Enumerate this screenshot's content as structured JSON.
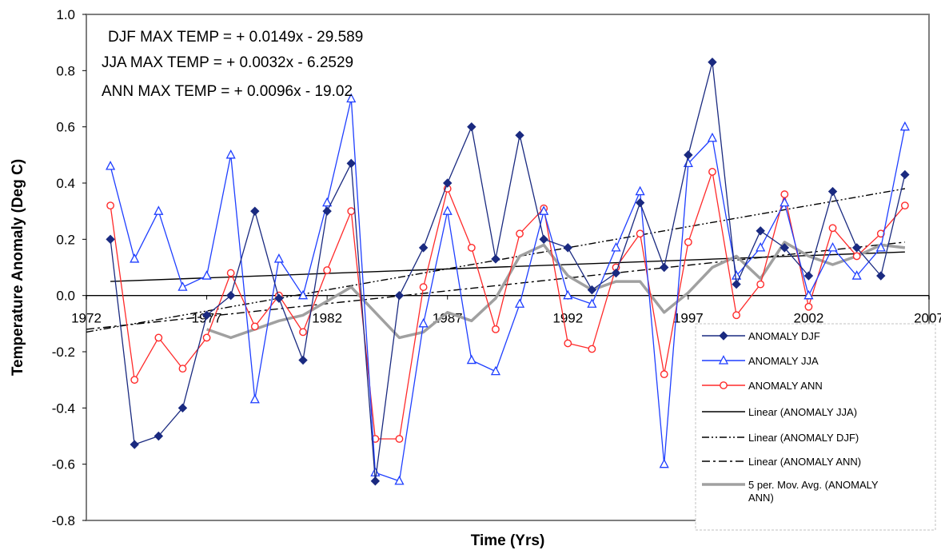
{
  "chart_data": {
    "type": "line",
    "title": "",
    "xlabel": "Time (Yrs)",
    "ylabel": "Temperature Anomaly (Deg C)",
    "xlim": [
      1972,
      2007
    ],
    "ylim": [
      -0.8,
      1.0
    ],
    "xticks": [
      "1972",
      "1977",
      "1982",
      "1987",
      "1992",
      "1997",
      "2002",
      "2007"
    ],
    "yticks": [
      "-0.8",
      "-0.6",
      "-0.4",
      "-0.2",
      "0.0",
      "0.2",
      "0.4",
      "0.6",
      "0.8",
      "1.0"
    ],
    "grid": false,
    "legend_position": "bottom-right",
    "equations": [
      "DJF MAX TEMP = + 0.0149x - 29.589",
      "JJA MAX TEMP =  + 0.0032x - 6.2529",
      "ANN MAX TEMP = + 0.0096x - 19.02"
    ],
    "x": [
      1973,
      1974,
      1975,
      1976,
      1977,
      1978,
      1979,
      1980,
      1981,
      1982,
      1983,
      1984,
      1985,
      1986,
      1987,
      1988,
      1989,
      1990,
      1991,
      1992,
      1993,
      1994,
      1995,
      1996,
      1997,
      1998,
      1999,
      2000,
      2001,
      2002,
      2003,
      2004,
      2005,
      2006
    ],
    "series": [
      {
        "name": "ANOMALY DJF",
        "color": "#1a2a80",
        "marker": "diamond",
        "values": [
          0.2,
          -0.53,
          -0.5,
          -0.4,
          -0.07,
          0.0,
          0.3,
          -0.01,
          -0.23,
          0.3,
          0.47,
          -0.66,
          0.0,
          0.17,
          0.4,
          0.6,
          0.13,
          0.57,
          0.2,
          0.17,
          0.02,
          0.08,
          0.33,
          0.1,
          0.5,
          0.83,
          0.04,
          0.23,
          0.17,
          0.07,
          0.37,
          0.17,
          0.07,
          0.43
        ]
      },
      {
        "name": "ANOMALY JJA",
        "color": "#1f3fff",
        "marker": "triangle",
        "values": [
          0.46,
          0.13,
          0.3,
          0.03,
          0.07,
          0.5,
          -0.37,
          0.13,
          0.0,
          0.33,
          0.7,
          -0.63,
          -0.66,
          -0.1,
          0.3,
          -0.23,
          -0.27,
          -0.03,
          0.3,
          0.0,
          -0.03,
          0.17,
          0.37,
          -0.6,
          0.47,
          0.56,
          0.07,
          0.17,
          0.33,
          0.0,
          0.17,
          0.07,
          0.17,
          0.6
        ]
      },
      {
        "name": "ANOMALY ANN",
        "color": "#ff2a2a",
        "marker": "circle",
        "values": [
          0.32,
          -0.3,
          -0.15,
          -0.26,
          -0.15,
          0.08,
          -0.11,
          0.0,
          -0.13,
          0.09,
          0.3,
          -0.51,
          -0.51,
          0.03,
          0.38,
          0.17,
          -0.12,
          0.22,
          0.31,
          -0.17,
          -0.19,
          0.1,
          0.22,
          -0.28,
          0.19,
          0.44,
          -0.07,
          0.04,
          0.36,
          -0.04,
          0.24,
          0.14,
          0.22,
          0.32
        ]
      },
      {
        "name": "Linear (ANOMALY JJA)",
        "color": "#000000",
        "style": "solid",
        "x": [
          1973,
          2006
        ],
        "values": [
          0.05,
          0.155
        ]
      },
      {
        "name": "Linear (ANOMALY DJF)",
        "color": "#000000",
        "style": "dash-dot-dot",
        "x": [
          1972,
          2006
        ],
        "values": [
          -0.13,
          0.38
        ]
      },
      {
        "name": "Linear (ANOMALY ANN)",
        "color": "#000000",
        "style": "dash-dot",
        "x": [
          1972,
          2006
        ],
        "values": [
          -0.12,
          0.19
        ]
      },
      {
        "name": "5 per. Mov. Avg. (ANOMALY ANN)",
        "color": "#a0a0a0",
        "style": "thick",
        "x": [
          1977,
          1978,
          1979,
          1980,
          1981,
          1982,
          1983,
          1984,
          1985,
          1986,
          1987,
          1988,
          1989,
          1990,
          1991,
          1992,
          1993,
          1994,
          1995,
          1996,
          1997,
          1998,
          1999,
          2000,
          2001,
          2002,
          2003,
          2004,
          2005,
          2006
        ],
        "values": [
          -0.12,
          -0.15,
          -0.12,
          -0.09,
          -0.07,
          -0.02,
          0.03,
          -0.06,
          -0.15,
          -0.13,
          -0.06,
          -0.09,
          -0.01,
          0.14,
          0.18,
          0.07,
          0.02,
          0.05,
          0.05,
          -0.06,
          0.01,
          0.1,
          0.14,
          0.06,
          0.19,
          0.14,
          0.11,
          0.14,
          0.18,
          0.17
        ]
      }
    ]
  }
}
